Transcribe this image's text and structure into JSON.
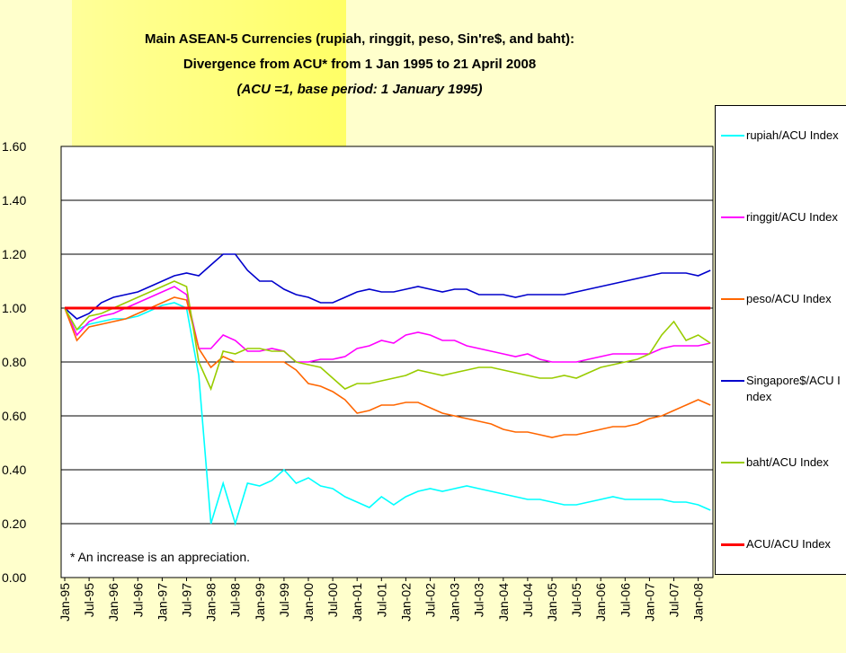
{
  "chart_data": {
    "type": "line",
    "title": "Main ASEAN-5 Currencies (rupiah, ringgit, peso, Sin're$, and baht):",
    "subtitle": "Divergence from ACU* from 1 Jan 1995 to 21 April 2008",
    "note": "(ACU =1, base period: 1 January 1995)",
    "annotation": "* An increase is an appreciation.",
    "categories": [
      "Jan-95",
      null,
      "Jul-95",
      null,
      "Jan-96",
      null,
      "Jul-96",
      null,
      "Jan-97",
      null,
      "Jul-97",
      null,
      "Jan-98",
      null,
      "Jul-98",
      null,
      "Jan-99",
      null,
      "Jul-99",
      null,
      "Jan-00",
      null,
      "Jul-00",
      null,
      "Jan-01",
      null,
      "Jul-01",
      null,
      "Jan-02",
      null,
      "Jul-02",
      null,
      "Jan-03",
      null,
      "Jul-03",
      null,
      "Jan-04",
      null,
      "Jul-04",
      null,
      "Jan-05",
      null,
      "Jul-05",
      null,
      "Jan-06",
      null,
      "Jul-06",
      null,
      "Jan-07",
      null,
      "Jul-07",
      null,
      "Jan-08",
      null
    ],
    "ylim": [
      0,
      1.6
    ],
    "yticks": [
      {
        "value": 0,
        "label": "0.00"
      },
      {
        "value": 0.2,
        "label": "0.20"
      },
      {
        "value": 0.4,
        "label": "0.40"
      },
      {
        "value": 0.6,
        "label": "0.60"
      },
      {
        "value": 0.8,
        "label": "0.80"
      },
      {
        "value": 1,
        "label": "1.00"
      },
      {
        "value": 1.2,
        "label": "1.20"
      },
      {
        "value": 1.4,
        "label": "1.40"
      },
      {
        "value": 1.6,
        "label": "1.60"
      }
    ],
    "grid": true,
    "legend": "right",
    "series": [
      {
        "name": "rupiah/ACU Index",
        "color": "#00ffff",
        "values": [
          1.0,
          0.92,
          0.94,
          0.95,
          0.96,
          0.96,
          0.97,
          0.99,
          1.01,
          1.02,
          1.0,
          0.75,
          0.2,
          0.35,
          0.2,
          0.35,
          0.34,
          0.36,
          0.4,
          0.35,
          0.37,
          0.34,
          0.33,
          0.3,
          0.28,
          0.26,
          0.3,
          0.27,
          0.3,
          0.32,
          0.33,
          0.32,
          0.33,
          0.34,
          0.33,
          0.32,
          0.31,
          0.3,
          0.29,
          0.29,
          0.28,
          0.27,
          0.27,
          0.28,
          0.29,
          0.3,
          0.29,
          0.29,
          0.29,
          0.29,
          0.28,
          0.28,
          0.27,
          0.25
        ]
      },
      {
        "name": "ringgit/ACU Index",
        "color": "#ff00ff",
        "values": [
          1.0,
          0.9,
          0.95,
          0.97,
          0.98,
          1.0,
          1.02,
          1.04,
          1.06,
          1.08,
          1.05,
          0.85,
          0.85,
          0.9,
          0.88,
          0.84,
          0.84,
          0.85,
          0.84,
          0.8,
          0.8,
          0.81,
          0.81,
          0.82,
          0.85,
          0.86,
          0.88,
          0.87,
          0.9,
          0.91,
          0.9,
          0.88,
          0.88,
          0.86,
          0.85,
          0.84,
          0.83,
          0.82,
          0.83,
          0.81,
          0.8,
          0.8,
          0.8,
          0.81,
          0.82,
          0.83,
          0.83,
          0.83,
          0.83,
          0.85,
          0.86,
          0.86,
          0.86,
          0.87
        ]
      },
      {
        "name": "peso/ACU Index",
        "color": "#ff6600",
        "values": [
          1.0,
          0.88,
          0.93,
          0.94,
          0.95,
          0.96,
          0.98,
          1.0,
          1.02,
          1.04,
          1.03,
          0.85,
          0.78,
          0.82,
          0.8,
          0.8,
          0.8,
          0.8,
          0.8,
          0.77,
          0.72,
          0.71,
          0.69,
          0.66,
          0.61,
          0.62,
          0.64,
          0.64,
          0.65,
          0.65,
          0.63,
          0.61,
          0.6,
          0.59,
          0.58,
          0.57,
          0.55,
          0.54,
          0.54,
          0.53,
          0.52,
          0.53,
          0.53,
          0.54,
          0.55,
          0.56,
          0.56,
          0.57,
          0.59,
          0.6,
          0.62,
          0.64,
          0.66,
          0.64
        ]
      },
      {
        "name": "Singapore$/ACU Index",
        "color": "#0000cc",
        "values": [
          1.0,
          0.96,
          0.98,
          1.02,
          1.04,
          1.05,
          1.06,
          1.08,
          1.1,
          1.12,
          1.13,
          1.12,
          1.16,
          1.2,
          1.2,
          1.14,
          1.1,
          1.1,
          1.07,
          1.05,
          1.04,
          1.02,
          1.02,
          1.04,
          1.06,
          1.07,
          1.06,
          1.06,
          1.07,
          1.08,
          1.07,
          1.06,
          1.07,
          1.07,
          1.05,
          1.05,
          1.05,
          1.04,
          1.05,
          1.05,
          1.05,
          1.05,
          1.06,
          1.07,
          1.08,
          1.09,
          1.1,
          1.11,
          1.12,
          1.13,
          1.13,
          1.13,
          1.12,
          1.14
        ]
      },
      {
        "name": "baht/ACU Index",
        "color": "#99cc00",
        "values": [
          1.0,
          0.92,
          0.97,
          0.98,
          1.0,
          1.02,
          1.04,
          1.06,
          1.08,
          1.1,
          1.08,
          0.8,
          0.7,
          0.84,
          0.83,
          0.85,
          0.85,
          0.84,
          0.84,
          0.8,
          0.79,
          0.78,
          0.74,
          0.7,
          0.72,
          0.72,
          0.73,
          0.74,
          0.75,
          0.77,
          0.76,
          0.75,
          0.76,
          0.77,
          0.78,
          0.78,
          0.77,
          0.76,
          0.75,
          0.74,
          0.74,
          0.75,
          0.74,
          0.76,
          0.78,
          0.79,
          0.8,
          0.81,
          0.83,
          0.9,
          0.95,
          0.88,
          0.9,
          0.87
        ]
      },
      {
        "name": "ACU/ACU Index",
        "color": "#ff0000",
        "values": [
          1,
          1,
          1,
          1,
          1,
          1,
          1,
          1,
          1,
          1,
          1,
          1,
          1,
          1,
          1,
          1,
          1,
          1,
          1,
          1,
          1,
          1,
          1,
          1,
          1,
          1,
          1,
          1,
          1,
          1,
          1,
          1,
          1,
          1,
          1,
          1,
          1,
          1,
          1,
          1,
          1,
          1,
          1,
          1,
          1,
          1,
          1,
          1,
          1,
          1,
          1,
          1,
          1,
          1
        ]
      }
    ]
  }
}
